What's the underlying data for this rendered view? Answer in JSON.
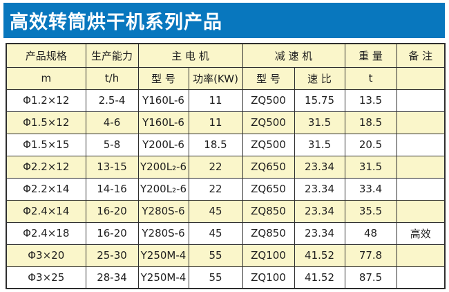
{
  "page": {
    "title": "高效转筒烘干机系列产品"
  },
  "colors": {
    "banner_blue": "#0877be",
    "header_yellow": "#faf6ca",
    "stripe_yellow": "#faf6ca",
    "row_white": "#ffffff",
    "grid_border": "#2e2e2e",
    "title_text": "#ffffff",
    "cell_text": "#1f1f1f"
  },
  "table": {
    "header_row1": [
      {
        "label": "产品规格"
      },
      {
        "label": "生产能力"
      },
      {
        "label": "主  电  机"
      },
      {
        "label": "减    速    机"
      },
      {
        "label": "重 量"
      },
      {
        "label": "备 注"
      }
    ],
    "header_row2": [
      "m",
      "t/h",
      "型 号",
      "功率(KW)",
      "型 号",
      "速 比",
      "t",
      ""
    ],
    "row_keys": [
      "spec",
      "capacity",
      "motor_model",
      "power",
      "reducer_model",
      "ratio",
      "weight",
      "note"
    ],
    "rows": [
      {
        "spec": "Φ1.2×12",
        "capacity": "2.5-4",
        "motor_model": "Y160L-6",
        "power": "11",
        "reducer_model": "ZQ500",
        "ratio": "15.75",
        "weight": "13.5",
        "note": ""
      },
      {
        "spec": "Φ1.5×12",
        "capacity": "4-6",
        "motor_model": "Y160L-6",
        "power": "11",
        "reducer_model": "ZQ500",
        "ratio": "31.5",
        "weight": "18.5",
        "note": ""
      },
      {
        "spec": "Φ1.5×15",
        "capacity": "5-8",
        "motor_model": "Y200L-6",
        "power": "18.5",
        "reducer_model": "ZQ500",
        "ratio": "31.5",
        "weight": "20.5",
        "note": ""
      },
      {
        "spec": "Φ2.2×12",
        "capacity": "13-15",
        "motor_model": "Y200L₂-6",
        "power": "22",
        "reducer_model": "ZQ650",
        "ratio": "23.34",
        "weight": "31.5",
        "note": ""
      },
      {
        "spec": "Φ2.2×14",
        "capacity": "14-16",
        "motor_model": "Y200L₂-6",
        "power": "22",
        "reducer_model": "ZQ650",
        "ratio": "23.34",
        "weight": "33.4",
        "note": ""
      },
      {
        "spec": "Φ2.4×14",
        "capacity": "16-20",
        "motor_model": "Y280S-6",
        "power": "45",
        "reducer_model": "ZQ850",
        "ratio": "23.34",
        "weight": "35.5",
        "note": ""
      },
      {
        "spec": "Φ2.4×18",
        "capacity": "16-20",
        "motor_model": "Y280S-6",
        "power": "45",
        "reducer_model": "ZQ850",
        "ratio": "23.34",
        "weight": "48",
        "note": "高效"
      },
      {
        "spec": "Φ3×20",
        "capacity": "25-30",
        "motor_model": "Y250M-4",
        "power": "55",
        "reducer_model": "ZQ100",
        "ratio": "41.52",
        "weight": "77.8",
        "note": ""
      },
      {
        "spec": "Φ3×25",
        "capacity": "28-34",
        "motor_model": "Y250M-4",
        "power": "55",
        "reducer_model": "ZQ100",
        "ratio": "41.52",
        "weight": "87.5",
        "note": ""
      }
    ]
  }
}
